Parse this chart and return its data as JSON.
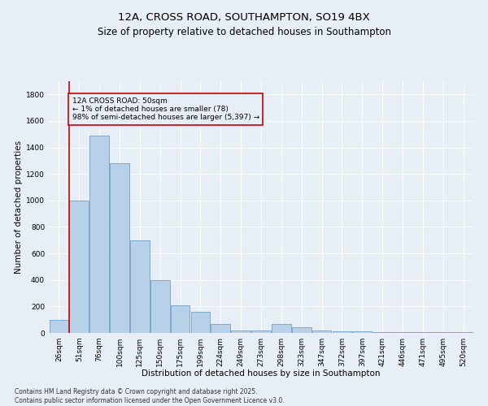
{
  "title_line1": "12A, CROSS ROAD, SOUTHAMPTON, SO19 4BX",
  "title_line2": "Size of property relative to detached houses in Southampton",
  "xlabel": "Distribution of detached houses by size in Southampton",
  "ylabel": "Number of detached properties",
  "categories": [
    "26sqm",
    "51sqm",
    "76sqm",
    "100sqm",
    "125sqm",
    "150sqm",
    "175sqm",
    "199sqm",
    "224sqm",
    "249sqm",
    "273sqm",
    "298sqm",
    "323sqm",
    "347sqm",
    "372sqm",
    "397sqm",
    "421sqm",
    "446sqm",
    "471sqm",
    "495sqm",
    "520sqm"
  ],
  "values": [
    100,
    1000,
    1490,
    1280,
    700,
    400,
    210,
    160,
    70,
    20,
    20,
    70,
    45,
    20,
    10,
    10,
    5,
    5,
    5,
    5,
    5
  ],
  "bar_color": "#b8d0e8",
  "bar_edge_color": "#6fa0c8",
  "annotation_box_text": "12A CROSS ROAD: 50sqm\n← 1% of detached houses are smaller (78)\n98% of semi-detached houses are larger (5,397) →",
  "vline_color": "#cc0000",
  "box_edge_color": "#cc0000",
  "ylim": [
    0,
    1900
  ],
  "yticks": [
    0,
    200,
    400,
    600,
    800,
    1000,
    1200,
    1400,
    1600,
    1800
  ],
  "background_color": "#e8eef5",
  "grid_color": "#ffffff",
  "footnote": "Contains HM Land Registry data © Crown copyright and database right 2025.\nContains public sector information licensed under the Open Government Licence v3.0.",
  "title_fontsize": 9.5,
  "subtitle_fontsize": 8.5,
  "label_fontsize": 7.5,
  "tick_fontsize": 6.5,
  "annotation_fontsize": 6.5,
  "footnote_fontsize": 5.5
}
